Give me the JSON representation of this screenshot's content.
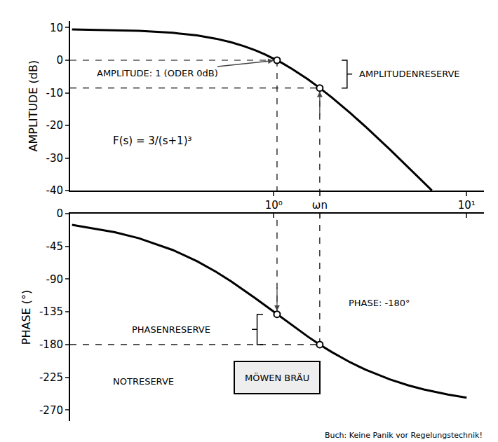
{
  "chart_data": [
    {
      "type": "line",
      "y_label": "AMPLITUDE (dB)",
      "log": "x",
      "grid": false,
      "tick_labels": true,
      "xlim": [
        0.088,
        12.3
      ],
      "xticks": [
        {
          "value": 1,
          "label": "10⁰"
        },
        {
          "value": 1.732,
          "label": "ωn"
        },
        {
          "value": 10,
          "label": "10¹"
        }
      ],
      "ylim": [
        -40,
        12
      ],
      "yticks": [
        10,
        0,
        -10,
        -20,
        -30,
        -40
      ],
      "annotations": {
        "point": "AMPLITUDE: 1 (ODER 0dB)",
        "reserve": "AMPLITUDENRESERVE",
        "formula": "F(s) = 3/(s+1)³"
      },
      "series": [
        {
          "color": "#000000",
          "line_style": "solid",
          "x": [
            0.09,
            0.15,
            0.2,
            0.3,
            0.4,
            0.5,
            0.6,
            0.7,
            0.8,
            0.9,
            1.0,
            1.1,
            1.25,
            1.5,
            1.732,
            2,
            2.5,
            3,
            4,
            5,
            6,
            6.6
          ],
          "values": [
            9.44,
            9.25,
            9.03,
            8.42,
            7.61,
            6.63,
            5.53,
            4.34,
            3.09,
            1.81,
            0.51,
            -0.79,
            -2.72,
            -5.82,
            -8.52,
            -11.43,
            -16.27,
            -20.46,
            -27.37,
            -32.91,
            -37.51,
            -39.93
          ]
        },
        {
          "type": "scatter",
          "marker": "circle",
          "color": "#000000",
          "x": [
            1.04,
            1.732
          ],
          "values": [
            0,
            -8.52
          ]
        }
      ]
    },
    {
      "type": "line",
      "y_label": "PHASE (°)",
      "log": "x",
      "grid": false,
      "tick_labels": "y",
      "xlim": [
        0.088,
        12.3
      ],
      "xticks": [
        {
          "value": 1,
          "label": "10⁰"
        },
        {
          "value": 1.732,
          "label": "ωn"
        },
        {
          "value": 10,
          "label": "10¹"
        }
      ],
      "ylim": [
        -285,
        0
      ],
      "yticks": [
        0,
        -45,
        -90,
        -135,
        -180,
        -225,
        -270
      ],
      "annotations": {
        "point": "PHASE: -180°",
        "reserve": "PHASENRESERVE",
        "emergency": "NOTRESERVE",
        "crate": "MÖWEN BRÄU"
      },
      "series": [
        {
          "color": "#000000",
          "line_style": "solid",
          "x": [
            0.09,
            0.15,
            0.2,
            0.3,
            0.4,
            0.5,
            0.6,
            0.7,
            0.8,
            0.9,
            1.0,
            1.1,
            1.25,
            1.5,
            1.732,
            2,
            2.5,
            3,
            4,
            5,
            6,
            8,
            10
          ],
          "values": [
            -15.4,
            -25.6,
            -33.9,
            -50.1,
            -65.4,
            -79.7,
            -92.9,
            -105.0,
            -116.0,
            -126.0,
            -135,
            -143.2,
            -154.0,
            -168.9,
            -180,
            -190.3,
            -204.6,
            -214.7,
            -227.9,
            -236.1,
            -241.6,
            -248.6,
            -252.9
          ]
        },
        {
          "type": "scatter",
          "marker": "circle",
          "color": "#000000",
          "x": [
            1.04,
            1.732
          ],
          "values": [
            -138.4,
            -180
          ]
        }
      ]
    }
  ],
  "source": "Buch: Keine Panik vor Regelungstechnik!"
}
